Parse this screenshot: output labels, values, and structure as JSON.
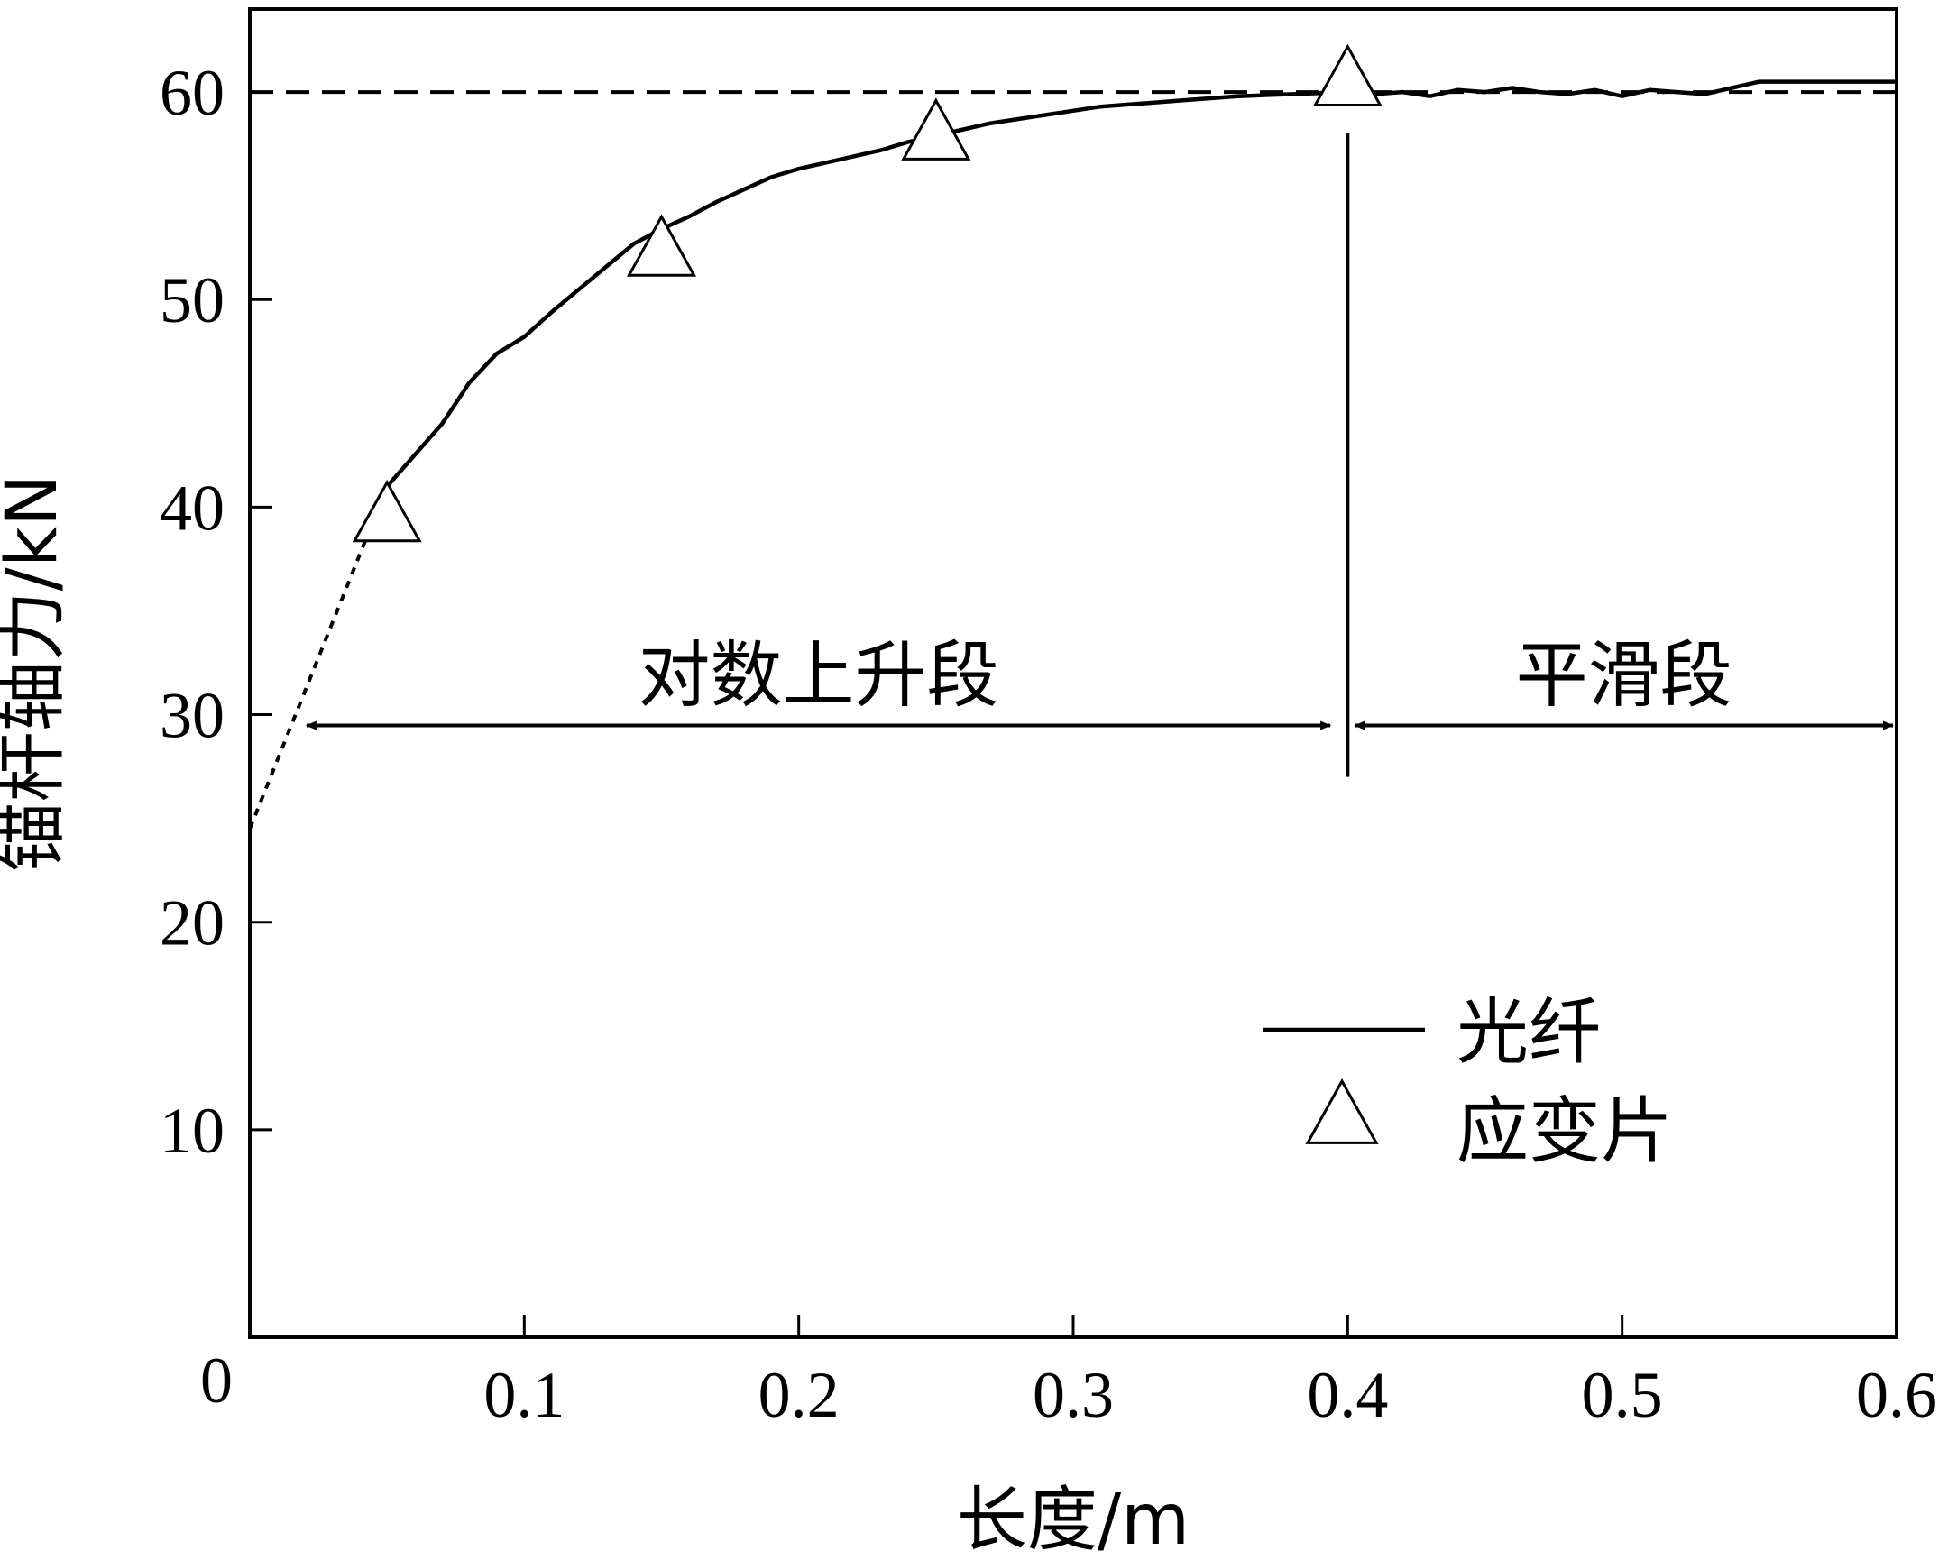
{
  "chart_data": {
    "type": "line",
    "title": "",
    "xlabel": "长度/m",
    "ylabel": "锚杆轴力/kN",
    "xlim": [
      0,
      0.6
    ],
    "ylim": [
      0,
      64
    ],
    "grid": false,
    "origin_label": "0",
    "x_ticks": [
      "0.1",
      "0.2",
      "0.3",
      "0.4",
      "0.5",
      "0.6"
    ],
    "x_tick_values": [
      0.1,
      0.2,
      0.3,
      0.4,
      0.5,
      0.6
    ],
    "y_ticks": [
      "10",
      "20",
      "30",
      "40",
      "50",
      "60"
    ],
    "y_tick_values": [
      10,
      20,
      30,
      40,
      50,
      60
    ],
    "legend_position": "lower-right",
    "series": [
      {
        "name": "光纤",
        "style": "solid",
        "x": [
          0.05,
          0.06,
          0.07,
          0.08,
          0.09,
          0.1,
          0.11,
          0.12,
          0.13,
          0.14,
          0.15,
          0.16,
          0.17,
          0.18,
          0.19,
          0.2,
          0.21,
          0.22,
          0.23,
          0.24,
          0.25,
          0.26,
          0.27,
          0.28,
          0.29,
          0.3,
          0.31,
          0.32,
          0.33,
          0.34,
          0.35,
          0.36,
          0.37,
          0.38,
          0.39,
          0.4,
          0.41,
          0.42,
          0.43,
          0.44,
          0.45,
          0.46,
          0.47,
          0.48,
          0.49,
          0.5,
          0.51,
          0.52,
          0.53,
          0.54,
          0.55,
          0.56,
          0.57,
          0.58,
          0.59,
          0.6
        ],
        "y": [
          41.0,
          42.5,
          44.0,
          46.0,
          47.4,
          48.2,
          49.4,
          50.5,
          51.6,
          52.7,
          53.4,
          54.0,
          54.7,
          55.3,
          55.9,
          56.3,
          56.6,
          56.9,
          57.2,
          57.6,
          57.9,
          58.2,
          58.5,
          58.7,
          58.9,
          59.1,
          59.3,
          59.4,
          59.5,
          59.6,
          59.7,
          59.8,
          59.85,
          59.9,
          59.95,
          60.0,
          59.9,
          60.0,
          59.8,
          60.1,
          60.0,
          60.2,
          60.0,
          59.9,
          60.1,
          59.8,
          60.1,
          60.0,
          59.9,
          60.2,
          60.5,
          60.5,
          60.5,
          60.5,
          60.5,
          60.5
        ]
      },
      {
        "name": "应变片",
        "style": "triangle-marker",
        "x": [
          0.05,
          0.15,
          0.25,
          0.4
        ],
        "y": [
          39.5,
          52.3,
          57.9,
          60.5
        ]
      },
      {
        "style": "dotted",
        "x": [
          0.0,
          0.05
        ],
        "y": [
          24.5,
          41.0
        ]
      },
      {
        "style": "dashed",
        "x": [
          0.0,
          0.6
        ],
        "y": [
          60.0,
          60.0
        ]
      }
    ],
    "annotations": [
      {
        "text": "对数上升段",
        "x_start": 0.02,
        "x_end": 0.395,
        "y": 30
      },
      {
        "text": "平滑段",
        "x_start": 0.4,
        "x_end": 0.6,
        "y": 30
      }
    ],
    "divider": {
      "x": 0.4,
      "y_from": 27.0,
      "y_to": 58.0
    }
  }
}
